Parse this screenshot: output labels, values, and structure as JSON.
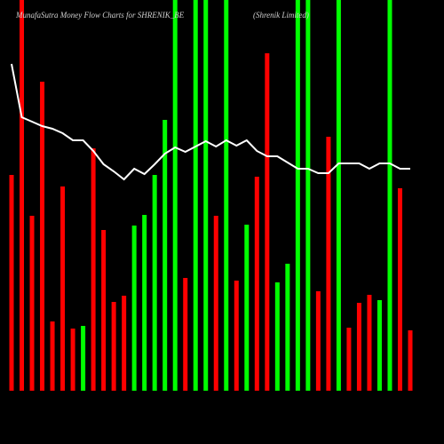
{
  "chart_data": {
    "type": "bar",
    "title": "MunafaSutra  Money Flow  Charts for SHRENIK_BE",
    "subtitle": "(Shrenik Limited)",
    "categories": [
      null,
      null,
      null,
      null,
      null,
      null,
      null,
      null,
      null,
      null,
      null,
      null,
      null,
      null,
      null,
      null,
      null,
      null,
      null,
      null,
      null,
      null,
      null,
      null,
      null,
      null,
      null,
      null,
      null,
      null,
      null,
      null,
      null,
      null,
      null,
      null,
      null,
      null,
      null,
      null
    ],
    "ylim": [
      0,
      440
    ],
    "series": [
      {
        "color": "bars",
        "colors": [
          "#ff0000",
          "#ff0000",
          "#ff0000",
          "#ff0000",
          "#ff0000",
          "#ff0000",
          "#ff0000",
          "#00ff00",
          "#ff0000",
          "#ff0000",
          "#ff0000",
          "#ff0000",
          "#00ff00",
          "#00ff00",
          "#00ff00",
          "#00ff00",
          "#00ff00",
          "#ff0000",
          "#00ff00",
          "#00ff00",
          "#ff0000",
          "#00ff00",
          "#ff0000",
          "#00ff00",
          "#ff0000",
          "#ff0000",
          "#00ff00",
          "#00ff00",
          "#00ff00",
          "#00ff00",
          "#ff0000",
          "#ff0000",
          "#00ff00",
          "#ff0000",
          "#ff0000",
          "#ff0000",
          "#00ff00",
          "#00ff00",
          "#ff0000",
          "#ff0000"
        ],
        "values": [
          243,
          440,
          197,
          348,
          78,
          230,
          70,
          73,
          273,
          181,
          100,
          107,
          186,
          198,
          243,
          305,
          440,
          127,
          440,
          440,
          197,
          440,
          124,
          187,
          241,
          380,
          122,
          143,
          440,
          440,
          112,
          286,
          440,
          71,
          99,
          108,
          102,
          440,
          228,
          68
        ]
      },
      {
        "type": "line",
        "color": "#ffffff",
        "values": [
          368,
          308,
          303,
          298,
          295,
          290,
          282,
          282,
          270,
          255,
          247,
          238,
          250,
          244,
          255,
          267,
          274,
          269,
          275,
          281,
          275,
          282,
          276,
          282,
          270,
          264,
          264,
          257,
          250,
          250,
          245,
          245,
          256,
          256,
          256,
          250,
          256,
          256,
          250,
          250
        ]
      }
    ]
  }
}
